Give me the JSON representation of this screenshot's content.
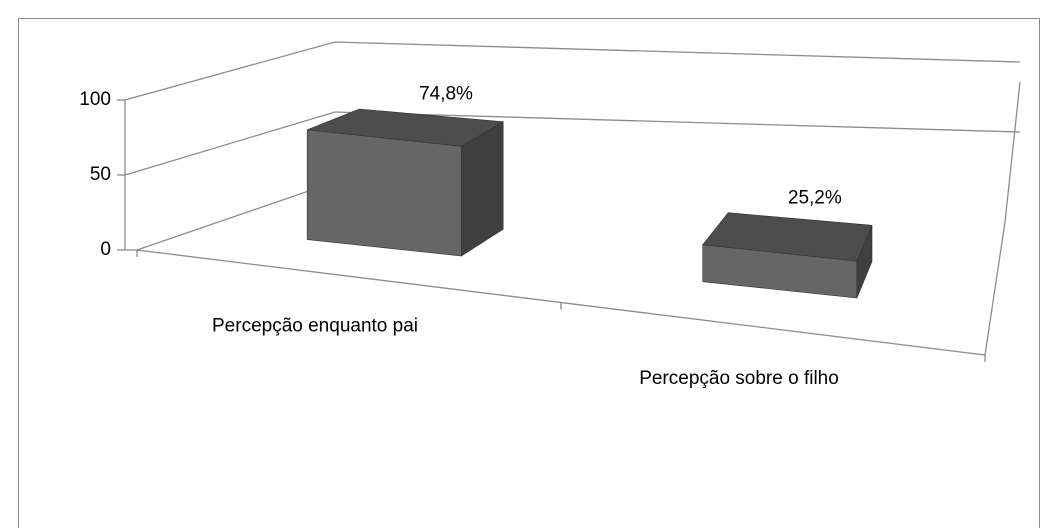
{
  "chart_data": {
    "type": "bar3d",
    "categories": [
      "Percepção enquanto pai",
      "Percepção sobre o filho"
    ],
    "values": [
      74.8,
      25.2
    ],
    "value_labels": [
      "74,8%",
      "25,2%"
    ],
    "color": "#666666",
    "ylim": [
      0,
      100
    ],
    "yticks": [
      0,
      50,
      100
    ],
    "grid": true
  }
}
